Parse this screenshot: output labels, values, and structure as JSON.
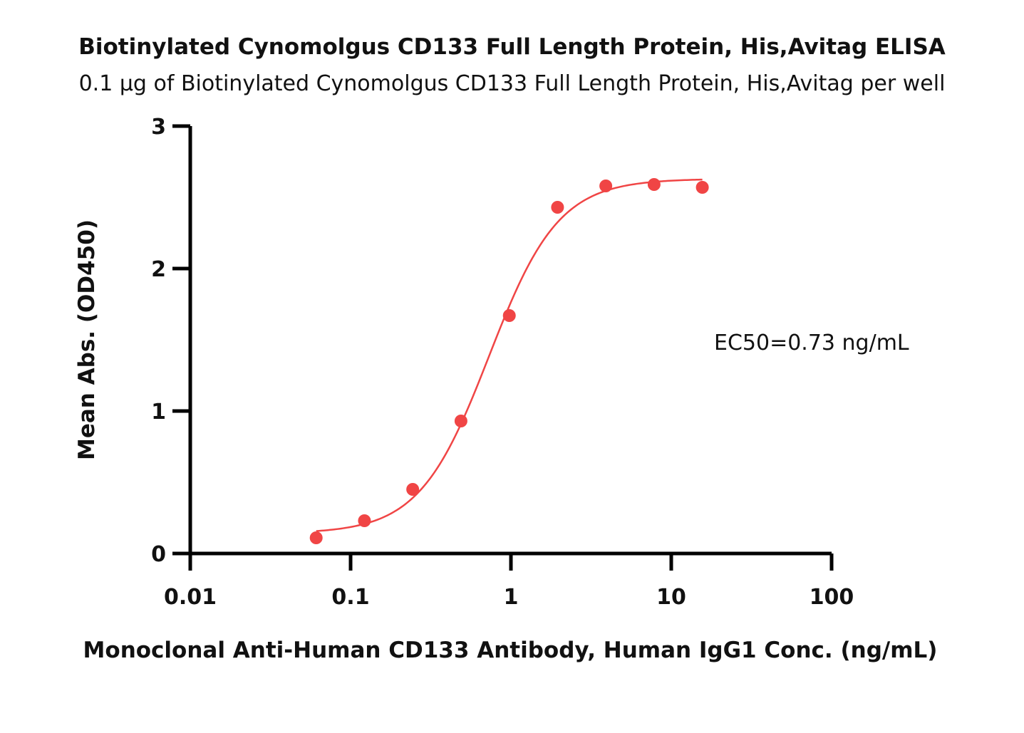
{
  "chart_data": {
    "type": "scatter",
    "title": "Biotinylated Cynomolgus CD133 Full Length Protein, His,Avitag ELISA",
    "subtitle": "0.1 µg of Biotinylated Cynomolgus CD133 Full Length Protein, His,Avitag per well",
    "xlabel": "Monoclonal Anti-Human CD133 Antibody, Human IgG1 Conc. (ng/mL)",
    "ylabel": "Mean Abs. (OD450)",
    "x_scale": "log",
    "xlim": [
      0.01,
      100
    ],
    "ylim": [
      0,
      3
    ],
    "x_ticks": [
      0.01,
      0.1,
      1,
      10,
      100
    ],
    "x_tick_labels": [
      "0.01",
      "0.1",
      "1",
      "10",
      "100"
    ],
    "y_ticks": [
      0,
      1,
      2,
      3
    ],
    "y_tick_labels": [
      "0",
      "1",
      "2",
      "3"
    ],
    "grid": false,
    "annotation": "EC50=0.73 ng/mL",
    "color": "#f04545",
    "series": [
      {
        "x": [
          0.061,
          0.122,
          0.244,
          0.488,
          0.977,
          1.953,
          3.906,
          7.813,
          15.625
        ],
        "y": [
          0.11,
          0.23,
          0.45,
          0.93,
          1.67,
          2.43,
          2.58,
          2.59,
          2.57
        ]
      }
    ],
    "fit": {
      "model": "4PL",
      "bottom": 0.14,
      "top": 2.63,
      "ec50": 0.73,
      "hill": 2.0,
      "x_range": [
        0.061,
        15.625
      ]
    }
  }
}
